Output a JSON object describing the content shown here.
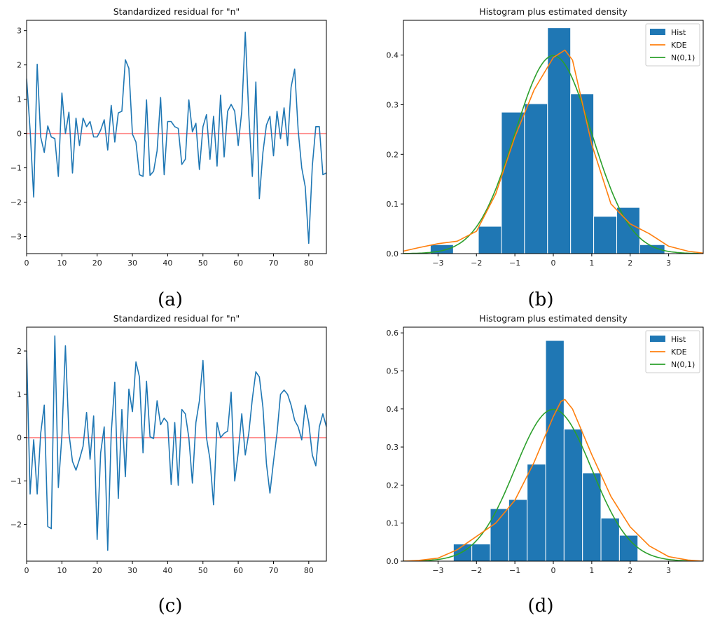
{
  "colors": {
    "series_blue": "#1f77b4",
    "kde_orange": "#ff7f0e",
    "normal_green": "#2ca02c",
    "zero_line_red": "#ff8a8a",
    "axis": "#000000"
  },
  "panel_labels": {
    "a": "(a)",
    "b": "(b)",
    "c": "(c)",
    "d": "(d)"
  },
  "chart_data": [
    {
      "id": "a",
      "type": "line",
      "title": "Standardized residual for \"n\"",
      "xlabel": "",
      "ylabel": "",
      "xlim": [
        0,
        85
      ],
      "ylim": [
        -3.5,
        3.3
      ],
      "xticks": [
        0,
        10,
        20,
        30,
        40,
        50,
        60,
        70,
        80
      ],
      "yticks": [
        -3,
        -2,
        -1,
        0,
        1,
        2,
        3
      ],
      "reference_line_y": 0,
      "grid": false,
      "x": [
        0,
        1,
        2,
        3,
        4,
        5,
        6,
        7,
        8,
        9,
        10,
        11,
        12,
        13,
        14,
        15,
        16,
        17,
        18,
        19,
        20,
        21,
        22,
        23,
        24,
        25,
        26,
        27,
        28,
        29,
        30,
        31,
        32,
        33,
        34,
        35,
        36,
        37,
        38,
        39,
        40,
        41,
        42,
        43,
        44,
        45,
        46,
        47,
        48,
        49,
        50,
        51,
        52,
        53,
        54,
        55,
        56,
        57,
        58,
        59,
        60,
        61,
        62,
        63,
        64,
        65,
        66,
        67,
        68,
        69,
        70,
        71,
        72,
        73,
        74,
        75,
        76,
        77,
        78,
        79,
        80,
        81,
        82,
        83,
        84,
        85
      ],
      "y": [
        1.6,
        0.1,
        -1.85,
        2.02,
        -0.1,
        -0.55,
        0.22,
        -0.1,
        -0.15,
        -1.25,
        1.18,
        0.0,
        0.62,
        -1.15,
        0.45,
        -0.35,
        0.45,
        0.2,
        0.35,
        -0.1,
        -0.1,
        0.1,
        0.4,
        -0.48,
        0.82,
        -0.25,
        0.6,
        0.65,
        2.15,
        1.9,
        -0.02,
        -0.25,
        -1.2,
        -1.25,
        0.98,
        -1.22,
        -1.1,
        -0.5,
        1.05,
        -1.2,
        0.35,
        0.35,
        0.2,
        0.15,
        -0.9,
        -0.75,
        0.98,
        0.05,
        0.3,
        -1.05,
        0.2,
        0.55,
        -0.75,
        0.5,
        -0.95,
        1.12,
        -0.68,
        0.65,
        0.85,
        0.65,
        -0.35,
        0.65,
        2.95,
        0.55,
        -1.25,
        1.5,
        -1.9,
        -0.55,
        0.25,
        0.5,
        -0.65,
        0.65,
        -0.15,
        0.75,
        -0.35,
        1.35,
        1.88,
        0.1,
        -1.0,
        -1.55,
        -3.2,
        -0.95,
        0.2,
        0.2,
        -1.2,
        -1.15
      ]
    },
    {
      "id": "b",
      "type": "bar",
      "title": "Histogram plus estimated density",
      "xlabel": "",
      "ylabel": "",
      "xlim": [
        -3.9,
        3.9
      ],
      "ylim": [
        0,
        0.47
      ],
      "xticks": [
        -3,
        -2,
        -1,
        0,
        1,
        2,
        3
      ],
      "yticks": [
        0.0,
        0.1,
        0.2,
        0.3,
        0.4
      ],
      "legend": {
        "placement": "top-right",
        "entries": [
          "Hist",
          "KDE",
          "N(0,1)"
        ]
      },
      "hist_bins": [
        {
          "x0": -3.2,
          "x1": -2.6,
          "value": 0.018
        },
        {
          "x0": -2.6,
          "x1": -1.95,
          "value": 0.0
        },
        {
          "x0": -1.95,
          "x1": -1.35,
          "value": 0.055
        },
        {
          "x0": -1.35,
          "x1": -0.75,
          "value": 0.285
        },
        {
          "x0": -0.75,
          "x1": -0.15,
          "value": 0.302
        },
        {
          "x0": -0.15,
          "x1": 0.45,
          "value": 0.455
        },
        {
          "x0": 0.45,
          "x1": 1.05,
          "value": 0.322
        },
        {
          "x0": 1.05,
          "x1": 1.65,
          "value": 0.075
        },
        {
          "x0": 1.65,
          "x1": 2.25,
          "value": 0.093
        },
        {
          "x0": 2.25,
          "x1": 2.9,
          "value": 0.018
        }
      ],
      "kde": {
        "x": [
          -3.9,
          -3.5,
          -3.0,
          -2.5,
          -2.0,
          -1.5,
          -1.0,
          -0.5,
          0.0,
          0.2,
          0.3,
          0.5,
          1.0,
          1.5,
          2.0,
          2.5,
          3.0,
          3.5,
          3.9
        ],
        "y": [
          0.005,
          0.012,
          0.02,
          0.025,
          0.045,
          0.12,
          0.235,
          0.33,
          0.395,
          0.405,
          0.41,
          0.39,
          0.22,
          0.1,
          0.06,
          0.04,
          0.015,
          0.005,
          0.001
        ]
      }
    },
    {
      "id": "c",
      "type": "line",
      "title": "Standardized residual for \"n\"",
      "xlabel": "",
      "ylabel": "",
      "xlim": [
        0,
        85
      ],
      "ylim": [
        -2.85,
        2.55
      ],
      "xticks": [
        0,
        10,
        20,
        30,
        40,
        50,
        60,
        70,
        80
      ],
      "yticks": [
        -2,
        -1,
        0,
        1,
        2
      ],
      "reference_line_y": 0,
      "grid": false,
      "x": [
        0,
        1,
        2,
        3,
        4,
        5,
        6,
        7,
        8,
        9,
        10,
        11,
        12,
        13,
        14,
        15,
        16,
        17,
        18,
        19,
        20,
        21,
        22,
        23,
        24,
        25,
        26,
        27,
        28,
        29,
        30,
        31,
        32,
        33,
        34,
        35,
        36,
        37,
        38,
        39,
        40,
        41,
        42,
        43,
        44,
        45,
        46,
        47,
        48,
        49,
        50,
        51,
        52,
        53,
        54,
        55,
        56,
        57,
        58,
        59,
        60,
        61,
        62,
        63,
        64,
        65,
        66,
        67,
        68,
        69,
        70,
        71,
        72,
        73,
        74,
        75,
        76,
        77,
        78,
        79,
        80,
        81,
        82,
        83,
        84,
        85
      ],
      "y": [
        2.0,
        -1.3,
        -0.05,
        -1.3,
        0.1,
        0.75,
        -2.05,
        -2.1,
        2.35,
        -1.15,
        0.05,
        2.12,
        0.1,
        -0.55,
        -0.75,
        -0.5,
        -0.2,
        0.58,
        -0.5,
        0.5,
        -2.35,
        -0.35,
        0.25,
        -2.6,
        0.1,
        1.28,
        -1.4,
        0.65,
        -0.9,
        1.12,
        0.6,
        1.75,
        1.4,
        -0.35,
        1.3,
        0.02,
        -0.02,
        0.85,
        0.3,
        0.45,
        0.35,
        -1.08,
        0.35,
        -1.1,
        0.65,
        0.55,
        0.0,
        -1.05,
        0.35,
        0.85,
        1.78,
        0.0,
        -0.5,
        -1.55,
        0.35,
        0.0,
        0.1,
        0.15,
        1.05,
        -1.0,
        -0.35,
        0.55,
        -0.4,
        0.1,
        0.9,
        1.52,
        1.4,
        0.7,
        -0.6,
        -1.28,
        -0.55,
        0.1,
        1.0,
        1.1,
        1.0,
        0.75,
        0.4,
        0.25,
        -0.05,
        0.75,
        0.35,
        -0.4,
        -0.65,
        0.25,
        0.55,
        0.25
      ]
    },
    {
      "id": "d",
      "type": "bar",
      "title": "Histogram plus estimated density",
      "xlabel": "",
      "ylabel": "",
      "xlim": [
        -3.9,
        3.9
      ],
      "ylim": [
        0,
        0.615
      ],
      "xticks": [
        -3,
        -2,
        -1,
        0,
        1,
        2,
        3
      ],
      "yticks": [
        0.0,
        0.1,
        0.2,
        0.3,
        0.4,
        0.5,
        0.6
      ],
      "legend": {
        "placement": "top-right",
        "entries": [
          "Hist",
          "KDE",
          "N(0,1)"
        ]
      },
      "hist_bins": [
        {
          "x0": -2.6,
          "x1": -2.12,
          "value": 0.045
        },
        {
          "x0": -2.12,
          "x1": -1.64,
          "value": 0.045
        },
        {
          "x0": -1.64,
          "x1": -1.16,
          "value": 0.138
        },
        {
          "x0": -1.16,
          "x1": -0.68,
          "value": 0.162
        },
        {
          "x0": -0.68,
          "x1": -0.2,
          "value": 0.255
        },
        {
          "x0": -0.2,
          "x1": 0.28,
          "value": 0.58
        },
        {
          "x0": 0.28,
          "x1": 0.76,
          "value": 0.347
        },
        {
          "x0": 0.76,
          "x1": 1.24,
          "value": 0.232
        },
        {
          "x0": 1.24,
          "x1": 1.72,
          "value": 0.113
        },
        {
          "x0": 1.72,
          "x1": 2.2,
          "value": 0.068
        }
      ],
      "kde": {
        "x": [
          -3.9,
          -3.5,
          -3.0,
          -2.5,
          -2.0,
          -1.5,
          -1.0,
          -0.5,
          0.0,
          0.2,
          0.3,
          0.5,
          1.0,
          1.5,
          2.0,
          2.5,
          3.0,
          3.5,
          3.9
        ],
        "y": [
          0.0,
          0.002,
          0.008,
          0.03,
          0.065,
          0.1,
          0.16,
          0.26,
          0.38,
          0.42,
          0.425,
          0.4,
          0.28,
          0.17,
          0.09,
          0.04,
          0.012,
          0.003,
          0.0
        ]
      }
    }
  ]
}
